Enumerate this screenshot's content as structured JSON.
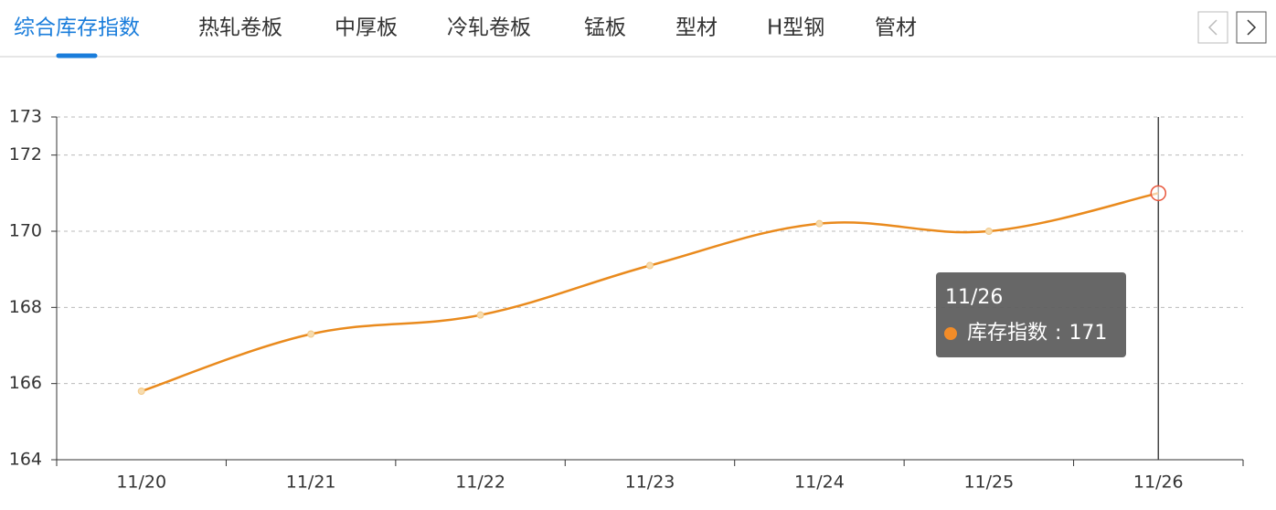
{
  "tabs": {
    "items": [
      "综合库存指数",
      "热轧卷板",
      "中厚板",
      "冷轧卷板",
      "锰板",
      "型材",
      "H型钢",
      "管材"
    ],
    "active": 0
  },
  "chart_data": {
    "type": "line",
    "categories": [
      "11/20",
      "11/21",
      "11/22",
      "11/23",
      "11/24",
      "11/25",
      "11/26"
    ],
    "series": [
      {
        "name": "库存指数",
        "color": "#e98a1d",
        "values": [
          165.8,
          167.3,
          167.8,
          169.1,
          170.2,
          170.0,
          171
        ]
      }
    ],
    "ylim": [
      164,
      173
    ],
    "yticks": [
      164,
      166,
      168,
      170,
      172,
      173
    ],
    "grid": true,
    "tooltip_separator": ":"
  }
}
